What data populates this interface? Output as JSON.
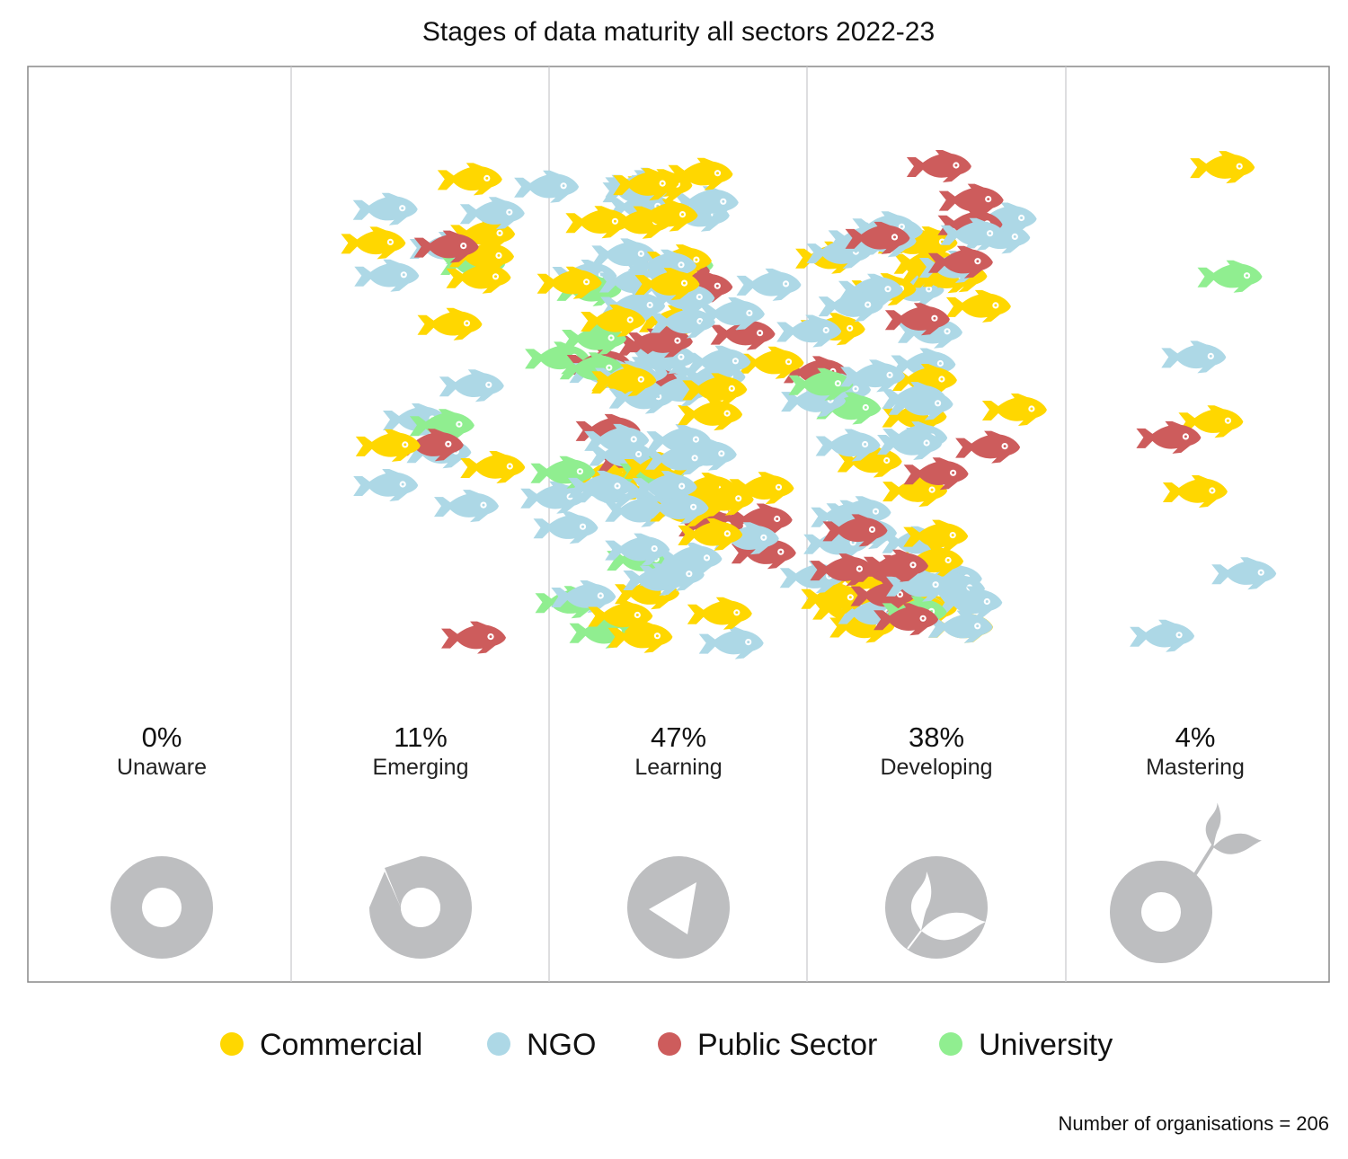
{
  "chart_data": {
    "type": "scatter",
    "title": "Stages of data maturity all sectors 2022-23",
    "footnote": "Number of organisations = 206",
    "colors": {
      "Commercial": "#FFD700",
      "NGO": "#ADD8E6",
      "Public Sector": "#CD5C5C",
      "University": "#90EE90",
      "icon": "#BDBEC0",
      "divider": "#C8C8CC",
      "frame": "#888888"
    },
    "legend": [
      "Commercial",
      "NGO",
      "Public Sector",
      "University"
    ],
    "legend_position": "bottom",
    "marker": "fish-icon",
    "stages": [
      {
        "label": "Unaware",
        "percent": "0%",
        "icon": "donut-icon",
        "counts": {
          "Commercial": 0,
          "NGO": 0,
          "Public Sector": 0,
          "University": 0
        }
      },
      {
        "label": "Emerging",
        "percent": "11%",
        "icon": "broken-donut-icon",
        "counts": {
          "Commercial": 8,
          "NGO": 10,
          "Public Sector": 3,
          "University": 2
        }
      },
      {
        "label": "Learning",
        "percent": "47%",
        "icon": "triangle-circle-icon",
        "counts": {
          "Commercial": 30,
          "NGO": 45,
          "Public Sector": 12,
          "University": 10
        }
      },
      {
        "label": "Developing",
        "percent": "38%",
        "icon": "leaf-circle-icon",
        "counts": {
          "Commercial": 24,
          "NGO": 36,
          "Public Sector": 15,
          "University": 3
        }
      },
      {
        "label": "Mastering",
        "percent": "4%",
        "icon": "sprouting-donut-icon",
        "counts": {
          "Commercial": 3,
          "NGO": 3,
          "Public Sector": 1,
          "University": 1
        }
      }
    ]
  }
}
